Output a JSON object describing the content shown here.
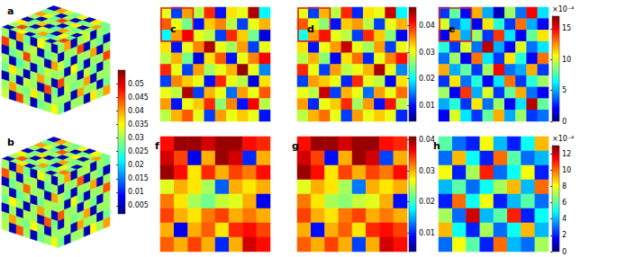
{
  "chart_data": [
    {
      "type": "cube",
      "title": "a",
      "tick_labels": false,
      "faces": {
        "top": [
          [
            0.03,
            0.005,
            0.032,
            0.028,
            0.005,
            0.035,
            0.03,
            0.005
          ],
          [
            0.045,
            0.03,
            0.025,
            0.04,
            0.03,
            0.028,
            0.045,
            0.03
          ],
          [
            0.028,
            0.035,
            0.005,
            0.03,
            0.033,
            0.005,
            0.03,
            0.036
          ],
          [
            0.005,
            0.03,
            0.04,
            0.026,
            0.005,
            0.038,
            0.028,
            0.005
          ],
          [
            0.032,
            0.028,
            0.03,
            0.005,
            0.03,
            0.03,
            0.005,
            0.03
          ],
          [
            0.03,
            0.005,
            0.036,
            0.03,
            0.045,
            0.027,
            0.034,
            0.04
          ],
          [
            0.04,
            0.03,
            0.028,
            0.005,
            0.03,
            0.005,
            0.03,
            0.028
          ],
          [
            0.028,
            0.036,
            0.005,
            0.034,
            0.028,
            0.032,
            0.04,
            0.005
          ]
        ],
        "left": [
          [
            0.005,
            0.03,
            0.035,
            0.005,
            0.028,
            0.04,
            0.005,
            0.03
          ],
          [
            0.03,
            0.028,
            0.005,
            0.032,
            0.03,
            0.005,
            0.03,
            0.045
          ],
          [
            0.04,
            0.005,
            0.03,
            0.03,
            0.045,
            0.03,
            0.028,
            0.005
          ],
          [
            0.03,
            0.032,
            0.028,
            0.005,
            0.03,
            0.026,
            0.005,
            0.03
          ],
          [
            0.005,
            0.03,
            0.04,
            0.03,
            0.005,
            0.03,
            0.036,
            0.028
          ],
          [
            0.028,
            0.045,
            0.005,
            0.03,
            0.032,
            0.005,
            0.03,
            0.005
          ],
          [
            0.03,
            0.005,
            0.03,
            0.036,
            0.028,
            0.03,
            0.04,
            0.03
          ],
          [
            0.035,
            0.03,
            0.028,
            0.005,
            0.03,
            0.045,
            0.005,
            0.032
          ]
        ],
        "right": [
          [
            0.03,
            0.04,
            0.005,
            0.03,
            0.032,
            0.005,
            0.03,
            0.028
          ],
          [
            0.005,
            0.03,
            0.03,
            0.045,
            0.005,
            0.03,
            0.028,
            0.005
          ],
          [
            0.032,
            0.028,
            0.005,
            0.03,
            0.03,
            0.04,
            0.005,
            0.03
          ],
          [
            0.03,
            0.005,
            0.035,
            0.028,
            0.005,
            0.03,
            0.03,
            0.045
          ],
          [
            0.045,
            0.03,
            0.03,
            0.005,
            0.032,
            0.028,
            0.005,
            0.03
          ],
          [
            0.005,
            0.032,
            0.028,
            0.03,
            0.04,
            0.005,
            0.03,
            0.03
          ],
          [
            0.03,
            0.03,
            0.005,
            0.04,
            0.03,
            0.03,
            0.005,
            0.028
          ],
          [
            0.028,
            0.005,
            0.03,
            0.03,
            0.005,
            0.036,
            0.03,
            0.04
          ]
        ]
      }
    },
    {
      "type": "cube",
      "title": "b",
      "tick_labels": false,
      "faces": {
        "top": [
          [
            0.03,
            0.005,
            0.03,
            0.028,
            0.005,
            0.036,
            0.03,
            0.005
          ],
          [
            0.042,
            0.03,
            0.026,
            0.04,
            0.03,
            0.028,
            0.044,
            0.03
          ],
          [
            0.028,
            0.034,
            0.005,
            0.03,
            0.032,
            0.005,
            0.03,
            0.035
          ],
          [
            0.005,
            0.03,
            0.04,
            0.027,
            0.005,
            0.037,
            0.028,
            0.005
          ],
          [
            0.031,
            0.028,
            0.03,
            0.005,
            0.03,
            0.03,
            0.005,
            0.03
          ],
          [
            0.03,
            0.005,
            0.035,
            0.03,
            0.044,
            0.027,
            0.033,
            0.04
          ],
          [
            0.04,
            0.03,
            0.028,
            0.005,
            0.03,
            0.005,
            0.03,
            0.028
          ],
          [
            0.028,
            0.035,
            0.005,
            0.034,
            0.028,
            0.031,
            0.04,
            0.005
          ]
        ],
        "left": [
          [
            0.005,
            0.03,
            0.034,
            0.005,
            0.028,
            0.04,
            0.005,
            0.03
          ],
          [
            0.03,
            0.028,
            0.005,
            0.031,
            0.03,
            0.005,
            0.03,
            0.044
          ],
          [
            0.04,
            0.005,
            0.03,
            0.03,
            0.043,
            0.03,
            0.028,
            0.005
          ],
          [
            0.03,
            0.031,
            0.028,
            0.005,
            0.03,
            0.027,
            0.005,
            0.03
          ],
          [
            0.005,
            0.03,
            0.04,
            0.03,
            0.005,
            0.03,
            0.035,
            0.028
          ],
          [
            0.028,
            0.044,
            0.005,
            0.03,
            0.031,
            0.005,
            0.03,
            0.005
          ],
          [
            0.03,
            0.005,
            0.03,
            0.035,
            0.028,
            0.03,
            0.04,
            0.03
          ],
          [
            0.034,
            0.03,
            0.028,
            0.005,
            0.03,
            0.044,
            0.005,
            0.031
          ]
        ],
        "right": [
          [
            0.03,
            0.04,
            0.005,
            0.03,
            0.031,
            0.005,
            0.03,
            0.028
          ],
          [
            0.005,
            0.03,
            0.03,
            0.044,
            0.005,
            0.03,
            0.028,
            0.005
          ],
          [
            0.031,
            0.028,
            0.005,
            0.03,
            0.03,
            0.04,
            0.005,
            0.03
          ],
          [
            0.03,
            0.005,
            0.034,
            0.028,
            0.005,
            0.03,
            0.03,
            0.044
          ],
          [
            0.044,
            0.03,
            0.03,
            0.005,
            0.031,
            0.028,
            0.005,
            0.03
          ],
          [
            0.005,
            0.031,
            0.028,
            0.03,
            0.04,
            0.005,
            0.03,
            0.03
          ],
          [
            0.03,
            0.03,
            0.005,
            0.04,
            0.03,
            0.03,
            0.005,
            0.028
          ],
          [
            0.028,
            0.005,
            0.03,
            0.03,
            0.005,
            0.035,
            0.03,
            0.04
          ]
        ]
      }
    },
    {
      "type": "heatmap",
      "title": "c",
      "tick_labels": false,
      "cells": [
        [
          0.03,
          0.012,
          0.035,
          0.028,
          0.04,
          0.01,
          0.032,
          0.03,
          0.045,
          0.02
        ],
        [
          0.038,
          0.03,
          0.025,
          0.01,
          0.033,
          0.036,
          0.028,
          0.012,
          0.03,
          0.034
        ],
        [
          0.02,
          0.035,
          0.042,
          0.03,
          0.028,
          0.012,
          0.04,
          0.033,
          0.025,
          0.008
        ],
        [
          0.032,
          0.01,
          0.03,
          0.036,
          0.045,
          0.03,
          0.027,
          0.035,
          0.012,
          0.03
        ],
        [
          0.028,
          0.034,
          0.025,
          0.008,
          0.032,
          0.038,
          0.01,
          0.03,
          0.036,
          0.042
        ],
        [
          0.04,
          0.03,
          0.012,
          0.035,
          0.027,
          0.03,
          0.034,
          0.046,
          0.03,
          0.015
        ],
        [
          0.012,
          0.036,
          0.033,
          0.03,
          0.01,
          0.04,
          0.03,
          0.028,
          0.008,
          0.032
        ],
        [
          0.03,
          0.028,
          0.045,
          0.012,
          0.034,
          0.03,
          0.014,
          0.035,
          0.03,
          0.038
        ],
        [
          0.035,
          0.01,
          0.03,
          0.033,
          0.04,
          0.026,
          0.036,
          0.01,
          0.042,
          0.028
        ],
        [
          0.028,
          0.034,
          0.038,
          0.03,
          0.012,
          0.035,
          0.03,
          0.033,
          0.03,
          0.01
        ]
      ]
    },
    {
      "type": "heatmap",
      "title": "d",
      "tick_labels": false,
      "cells": [
        [
          0.03,
          0.012,
          0.034,
          0.028,
          0.04,
          0.011,
          0.032,
          0.03,
          0.044,
          0.02
        ],
        [
          0.038,
          0.03,
          0.026,
          0.01,
          0.033,
          0.035,
          0.028,
          0.012,
          0.03,
          0.034
        ],
        [
          0.021,
          0.035,
          0.041,
          0.03,
          0.028,
          0.012,
          0.04,
          0.033,
          0.026,
          0.009
        ],
        [
          0.032,
          0.01,
          0.03,
          0.035,
          0.044,
          0.03,
          0.027,
          0.035,
          0.012,
          0.03
        ],
        [
          0.028,
          0.034,
          0.026,
          0.009,
          0.032,
          0.037,
          0.011,
          0.03,
          0.036,
          0.041
        ],
        [
          0.04,
          0.03,
          0.012,
          0.035,
          0.028,
          0.03,
          0.034,
          0.045,
          0.03,
          0.015
        ],
        [
          0.012,
          0.035,
          0.033,
          0.03,
          0.011,
          0.04,
          0.03,
          0.028,
          0.009,
          0.032
        ],
        [
          0.03,
          0.028,
          0.044,
          0.012,
          0.034,
          0.03,
          0.014,
          0.035,
          0.03,
          0.037
        ],
        [
          0.035,
          0.011,
          0.03,
          0.033,
          0.04,
          0.027,
          0.035,
          0.01,
          0.041,
          0.028
        ],
        [
          0.028,
          0.034,
          0.037,
          0.03,
          0.012,
          0.035,
          0.03,
          0.033,
          0.03,
          0.011
        ]
      ]
    },
    {
      "type": "heatmap",
      "title": "e",
      "tick_labels": false,
      "cells": [
        [
          3,
          8,
          2,
          12,
          5,
          1,
          9,
          4,
          15,
          6
        ],
        [
          10,
          4,
          6,
          2,
          11,
          7,
          3,
          13,
          5,
          2
        ],
        [
          2,
          12,
          5,
          9,
          3,
          14,
          6,
          2,
          8,
          11
        ],
        [
          7,
          3,
          10,
          4,
          16,
          5,
          2,
          10,
          4,
          6
        ],
        [
          4,
          9,
          2,
          13,
          6,
          3,
          11,
          7,
          2,
          13
        ],
        [
          12,
          5,
          8,
          3,
          9,
          15,
          4,
          5,
          12,
          3
        ],
        [
          3,
          11,
          4,
          7,
          2,
          6,
          13,
          3,
          7,
          9
        ],
        [
          9,
          2,
          14,
          5,
          10,
          3,
          8,
          12,
          4,
          2
        ],
        [
          5,
          7,
          3,
          11,
          4,
          9,
          2,
          6,
          16,
          8
        ],
        [
          2,
          10,
          6,
          3,
          8,
          12,
          5,
          9,
          3,
          4
        ]
      ]
    },
    {
      "type": "heatmap",
      "title": "f",
      "tick_labels": false,
      "cells": [
        [
          0.036,
          0.04,
          0.04,
          0.038,
          0.04,
          0.04,
          0.036,
          0.035
        ],
        [
          0.038,
          0.034,
          0.008,
          0.03,
          0.04,
          0.038,
          0.01,
          0.03
        ],
        [
          0.04,
          0.036,
          0.028,
          0.035,
          0.03,
          0.034,
          0.032,
          0.036
        ],
        [
          0.026,
          0.03,
          0.028,
          0.024,
          0.012,
          0.03,
          0.028,
          0.03
        ],
        [
          0.032,
          0.028,
          0.024,
          0.022,
          0.025,
          0.026,
          0.03,
          0.008
        ],
        [
          0.034,
          0.03,
          0.028,
          0.032,
          0.034,
          0.03,
          0.032,
          0.03
        ],
        [
          0.03,
          0.008,
          0.03,
          0.033,
          0.028,
          0.035,
          0.036,
          0.034
        ],
        [
          0.033,
          0.03,
          0.034,
          0.03,
          0.01,
          0.03,
          0.038,
          0.036
        ]
      ]
    },
    {
      "type": "heatmap",
      "title": "g",
      "tick_labels": false,
      "cells": [
        [
          0.036,
          0.04,
          0.04,
          0.038,
          0.04,
          0.04,
          0.036,
          0.035
        ],
        [
          0.038,
          0.034,
          0.009,
          0.03,
          0.04,
          0.038,
          0.011,
          0.03
        ],
        [
          0.04,
          0.036,
          0.028,
          0.034,
          0.03,
          0.034,
          0.032,
          0.036
        ],
        [
          0.026,
          0.03,
          0.028,
          0.024,
          0.013,
          0.03,
          0.028,
          0.03
        ],
        [
          0.032,
          0.028,
          0.024,
          0.023,
          0.025,
          0.026,
          0.03,
          0.009
        ],
        [
          0.034,
          0.03,
          0.028,
          0.032,
          0.034,
          0.03,
          0.032,
          0.03
        ],
        [
          0.03,
          0.009,
          0.03,
          0.033,
          0.028,
          0.035,
          0.036,
          0.034
        ],
        [
          0.033,
          0.03,
          0.034,
          0.03,
          0.011,
          0.03,
          0.038,
          0.036
        ]
      ]
    },
    {
      "type": "heatmap",
      "title": "h",
      "tick_labels": false,
      "cells": [
        [
          6,
          3,
          2,
          8,
          4,
          2,
          5,
          9
        ],
        [
          3,
          9,
          5,
          2,
          10,
          6,
          3,
          4
        ],
        [
          8,
          2,
          7,
          11,
          3,
          5,
          8,
          2
        ],
        [
          4,
          6,
          3,
          5,
          7,
          9,
          4,
          10
        ],
        [
          2,
          10,
          5,
          8,
          2,
          4,
          6,
          3
        ],
        [
          7,
          3,
          12,
          4,
          6,
          11,
          2,
          5
        ],
        [
          9,
          5,
          2,
          7,
          3,
          5,
          9,
          4
        ],
        [
          3,
          8,
          6,
          2,
          10,
          4,
          3,
          7
        ]
      ]
    }
  ],
  "colorbars": [
    {
      "panels": [
        "a",
        "b"
      ],
      "range": [
        0.002,
        0.055
      ],
      "ticks": [
        0.005,
        0.01,
        0.015,
        0.02,
        0.025,
        0.03,
        0.035,
        0.04,
        0.045,
        0.05
      ]
    },
    {
      "panels": [
        "c",
        "d"
      ],
      "range": [
        0.004,
        0.047
      ],
      "ticks": [
        0.01,
        0.02,
        0.03,
        0.04
      ]
    },
    {
      "panels": [
        "e"
      ],
      "range": [
        0,
        17
      ],
      "ticks": [
        0,
        5,
        10,
        15
      ],
      "label": "×10⁻⁴"
    },
    {
      "panels": [
        "f",
        "g"
      ],
      "range": [
        0.004,
        0.041
      ],
      "ticks": [
        0.01,
        0.02,
        0.03,
        0.04
      ]
    },
    {
      "panels": [
        "h"
      ],
      "range": [
        0,
        13
      ],
      "ticks": [
        0,
        2,
        4,
        6,
        8,
        10,
        12
      ],
      "label": "×10⁻⁴"
    }
  ]
}
